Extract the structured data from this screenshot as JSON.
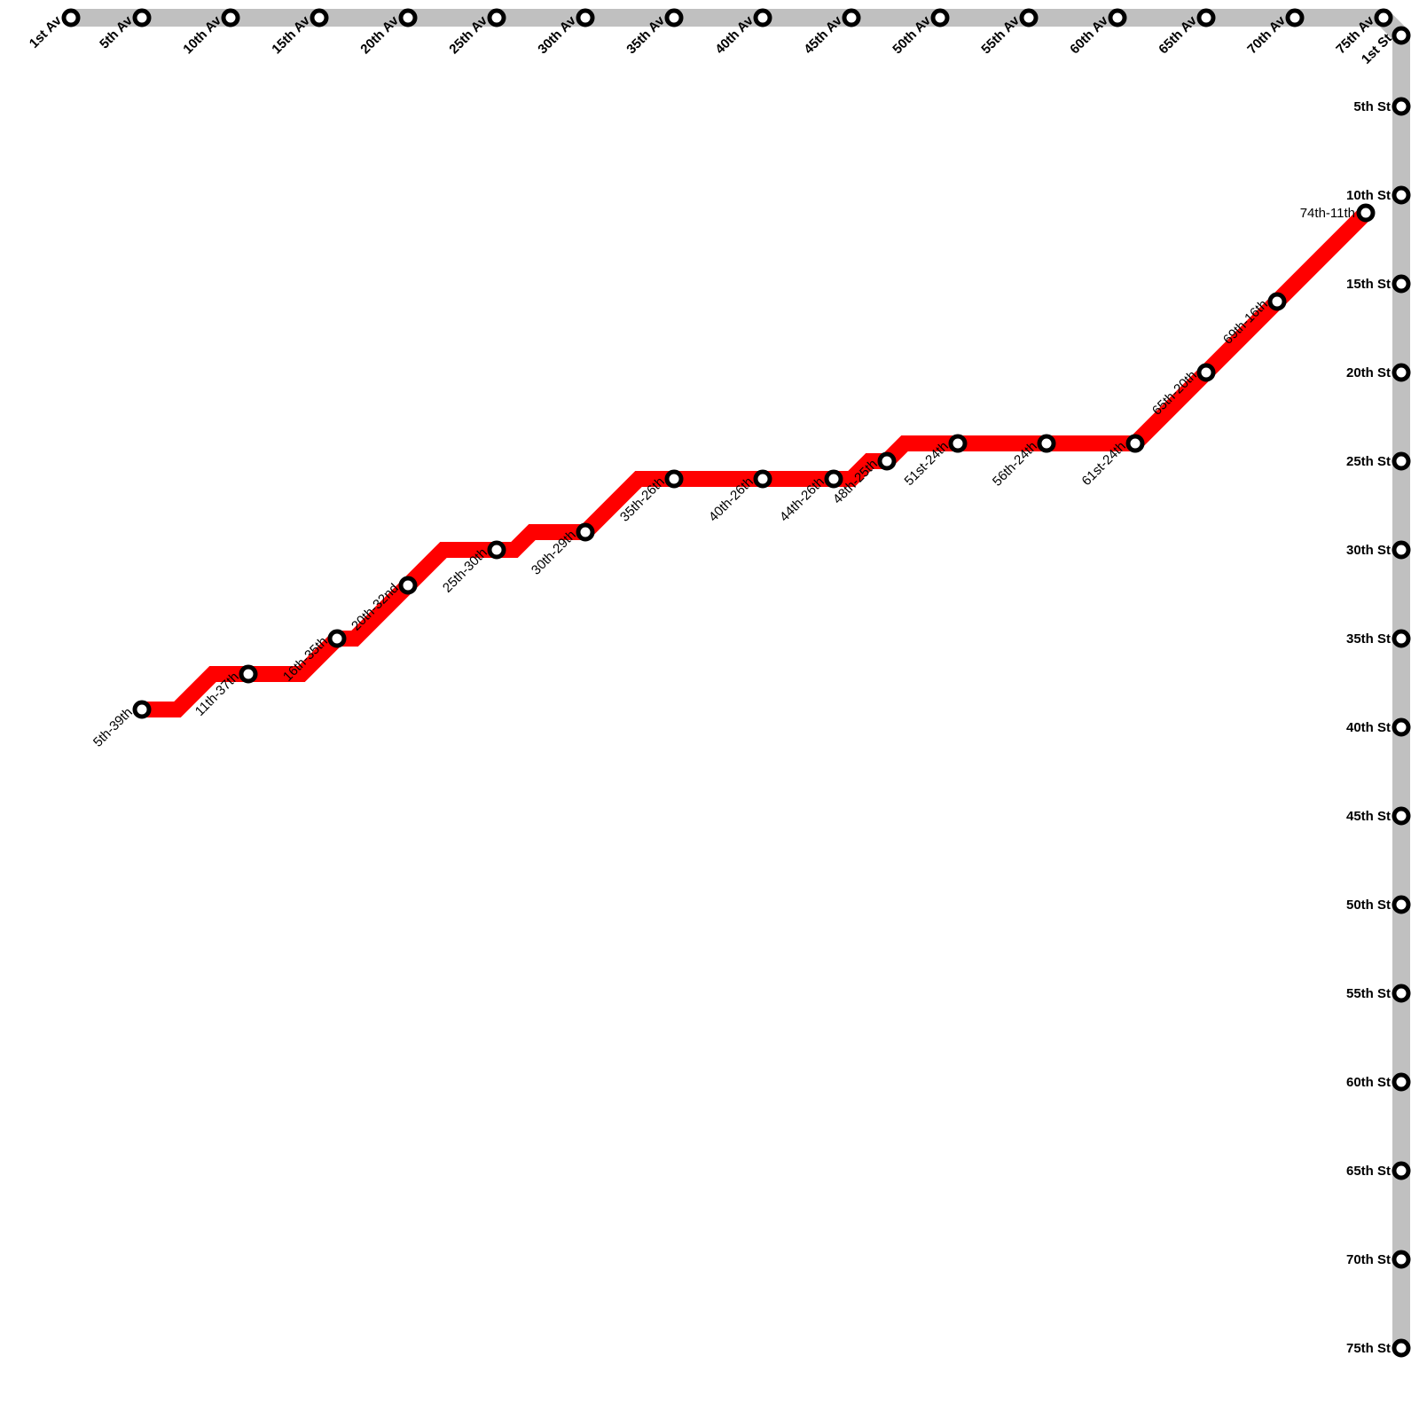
{
  "colors": {
    "grid_line": "#c0c0c0",
    "route_line": "#ff0000",
    "station_fill": "#ffffff",
    "station_stroke": "#000000"
  },
  "avenues": [
    "1st Av",
    "5th Av",
    "10th Av",
    "15th Av",
    "20th Av",
    "25th Av",
    "30th Av",
    "35th Av",
    "40th Av",
    "45th Av",
    "50th Av",
    "55th Av",
    "60th Av",
    "65th Av",
    "70th Av",
    "75th Av"
  ],
  "streets": [
    "1st St",
    "5th St",
    "10th St",
    "15th St",
    "20th St",
    "25th St",
    "30th St",
    "35th St",
    "40th St",
    "45th St",
    "50th St",
    "55th St",
    "60th St",
    "65th St",
    "70th St",
    "75th St"
  ],
  "route_stations": [
    {
      "label": "5th-39th",
      "av": 5,
      "st": 39
    },
    {
      "label": "11th-37th",
      "av": 11,
      "st": 37
    },
    {
      "label": "16th-35th",
      "av": 16,
      "st": 35
    },
    {
      "label": "20th-32nd",
      "av": 20,
      "st": 32
    },
    {
      "label": "25th-30th",
      "av": 25,
      "st": 30
    },
    {
      "label": "30th-29th",
      "av": 30,
      "st": 29
    },
    {
      "label": "35th-26th",
      "av": 35,
      "st": 26
    },
    {
      "label": "40th-26th",
      "av": 40,
      "st": 26
    },
    {
      "label": "44th-26th",
      "av": 44,
      "st": 26
    },
    {
      "label": "48th-25th",
      "av": 48,
      "st": 25
    },
    {
      "label": "51st-24th",
      "av": 51,
      "st": 24
    },
    {
      "label": "56th-24th",
      "av": 56,
      "st": 24
    },
    {
      "label": "61st-24th",
      "av": 61,
      "st": 24
    },
    {
      "label": "65th-20th",
      "av": 65,
      "st": 20
    },
    {
      "label": "69th-16th",
      "av": 69,
      "st": 16
    },
    {
      "label": "74th-11th",
      "av": 74,
      "st": 11
    }
  ]
}
